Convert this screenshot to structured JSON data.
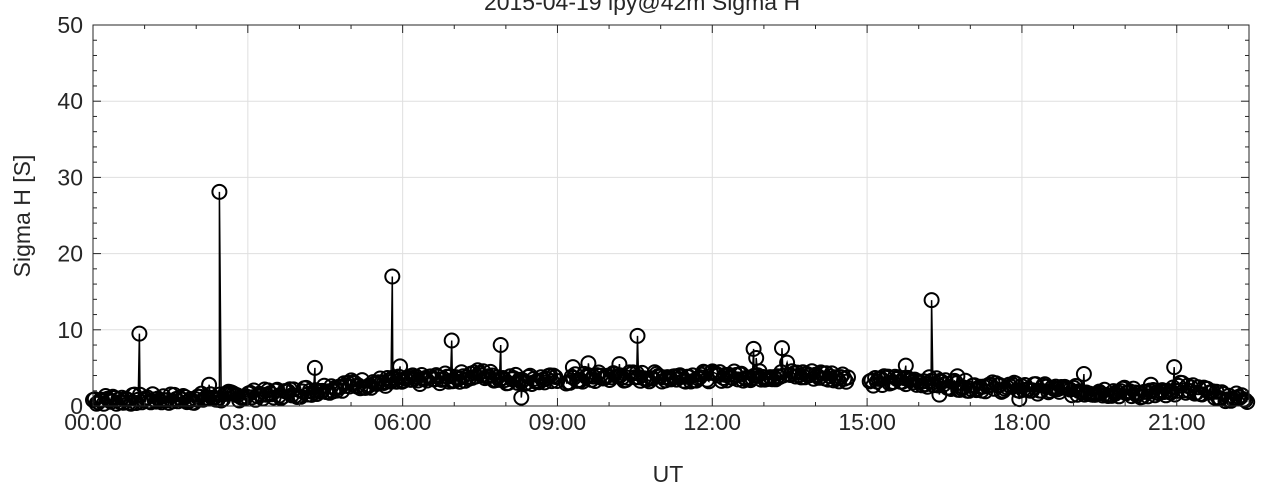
{
  "chart_data": {
    "type": "scatter",
    "title": "2015-04-19 lpy@42m Sigma H",
    "xlabel": "UT",
    "ylabel": "Sigma H [S]",
    "xlim_hours": [
      0,
      22.4
    ],
    "ylim": [
      0,
      50
    ],
    "x_ticks": [
      {
        "value": 0,
        "label": "00:00"
      },
      {
        "value": 3,
        "label": "03:00"
      },
      {
        "value": 6,
        "label": "06:00"
      },
      {
        "value": 9,
        "label": "09:00"
      },
      {
        "value": 12,
        "label": "12:00"
      },
      {
        "value": 15,
        "label": "15:00"
      },
      {
        "value": 18,
        "label": "18:00"
      },
      {
        "value": 21,
        "label": "21:00"
      }
    ],
    "y_ticks": [
      {
        "value": 0,
        "label": "0"
      },
      {
        "value": 10,
        "label": "10"
      },
      {
        "value": 20,
        "label": "20"
      },
      {
        "value": 30,
        "label": "30"
      },
      {
        "value": 40,
        "label": "40"
      },
      {
        "value": 50,
        "label": "50"
      }
    ],
    "grid": true,
    "marker": "open-circle",
    "line_color": "#000000",
    "grid_color": "#dfdfdf",
    "gaps_hours": [
      [
        9.0,
        9.15
      ],
      [
        13.4,
        13.5
      ],
      [
        14.65,
        15.05
      ]
    ],
    "baseline_trend": [
      [
        0.0,
        0.8
      ],
      [
        1.0,
        0.9
      ],
      [
        2.0,
        1.0
      ],
      [
        3.0,
        1.4
      ],
      [
        4.0,
        1.8
      ],
      [
        5.0,
        2.8
      ],
      [
        6.0,
        3.3
      ],
      [
        7.0,
        3.7
      ],
      [
        7.5,
        4.2
      ],
      [
        8.0,
        3.6
      ],
      [
        9.0,
        3.4
      ],
      [
        10.0,
        3.9
      ],
      [
        11.0,
        3.8
      ],
      [
        12.0,
        3.9
      ],
      [
        13.0,
        4.0
      ],
      [
        14.0,
        4.1
      ],
      [
        14.6,
        3.8
      ],
      [
        15.0,
        3.3
      ],
      [
        16.0,
        3.3
      ],
      [
        17.0,
        2.6
      ],
      [
        18.0,
        2.4
      ],
      [
        19.0,
        2.0
      ],
      [
        20.0,
        1.8
      ],
      [
        20.9,
        1.5
      ],
      [
        21.0,
        2.5
      ],
      [
        21.5,
        2.0
      ],
      [
        22.0,
        1.2
      ],
      [
        22.4,
        1.0
      ]
    ],
    "spikes": [
      {
        "x": 0.9,
        "y": 9.5
      },
      {
        "x": 2.25,
        "y": 2.8
      },
      {
        "x": 2.45,
        "y": 28.1
      },
      {
        "x": 4.3,
        "y": 5.0
      },
      {
        "x": 5.8,
        "y": 17.0
      },
      {
        "x": 5.95,
        "y": 5.2
      },
      {
        "x": 6.95,
        "y": 8.6
      },
      {
        "x": 7.9,
        "y": 8.0
      },
      {
        "x": 8.3,
        "y": 1.1
      },
      {
        "x": 9.3,
        "y": 5.1
      },
      {
        "x": 9.6,
        "y": 5.6
      },
      {
        "x": 10.2,
        "y": 5.5
      },
      {
        "x": 10.55,
        "y": 9.2
      },
      {
        "x": 12.8,
        "y": 7.5
      },
      {
        "x": 12.85,
        "y": 6.3
      },
      {
        "x": 13.35,
        "y": 7.6
      },
      {
        "x": 13.45,
        "y": 5.7
      },
      {
        "x": 15.75,
        "y": 5.3
      },
      {
        "x": 16.25,
        "y": 13.9
      },
      {
        "x": 16.4,
        "y": 1.5
      },
      {
        "x": 16.75,
        "y": 3.9
      },
      {
        "x": 17.95,
        "y": 0.9
      },
      {
        "x": 19.2,
        "y": 4.2
      },
      {
        "x": 20.5,
        "y": 2.8
      },
      {
        "x": 20.95,
        "y": 5.1
      }
    ]
  }
}
